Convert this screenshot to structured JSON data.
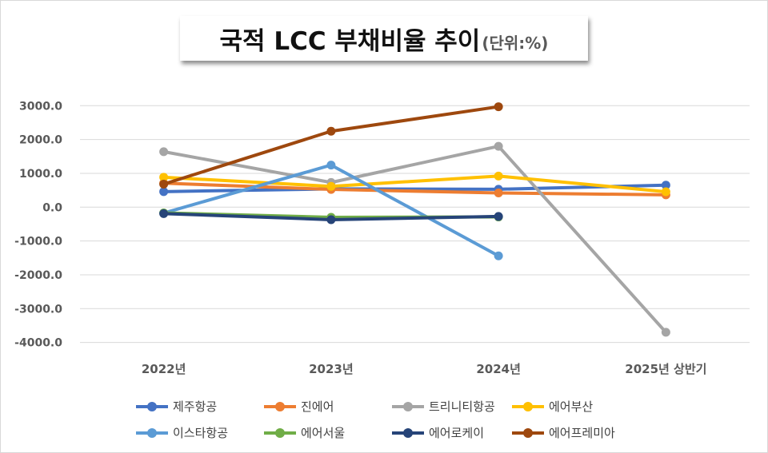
{
  "chart_data": {
    "type": "line",
    "title": "국적 LCC 부채비율 추이",
    "subtitle": "(단위:%)",
    "categories": [
      "2022년",
      "2023년",
      "2024년",
      "2025년 상반기"
    ],
    "ylim": [
      -4000,
      3000
    ],
    "yticks": [
      "3000.0",
      "2000.0",
      "1000.0",
      "0.0",
      "-1000.0",
      "-2000.0",
      "-3000.0",
      "-4000.0"
    ],
    "ytick_values": [
      3000,
      2000,
      1000,
      0,
      -1000,
      -2000,
      -3000,
      -4000
    ],
    "grid": true,
    "legend_position": "bottom",
    "series": [
      {
        "name": "제주항공",
        "color": "#4472C4",
        "values": [
          460,
          540,
          530,
          650
        ]
      },
      {
        "name": "진에어",
        "color": "#ED7D31",
        "values": [
          710,
          525,
          420,
          365
        ]
      },
      {
        "name": "트리니티항공",
        "color": "#A5A5A5",
        "values": [
          1640,
          730,
          1800,
          -3700
        ]
      },
      {
        "name": "에어부산",
        "color": "#FFC000",
        "values": [
          885,
          615,
          920,
          455
        ]
      },
      {
        "name": "이스타항공",
        "color": "#5B9BD5",
        "values": [
          -175,
          1245,
          -1440,
          null
        ]
      },
      {
        "name": "에어서울",
        "color": "#70AD47",
        "values": [
          -170,
          -300,
          -290,
          null
        ]
      },
      {
        "name": "에어로케이",
        "color": "#264478",
        "values": [
          -190,
          -370,
          -275,
          null
        ]
      },
      {
        "name": "에어프레미아",
        "color": "#9E480E",
        "values": [
          680,
          2245,
          2970,
          null
        ]
      }
    ]
  }
}
